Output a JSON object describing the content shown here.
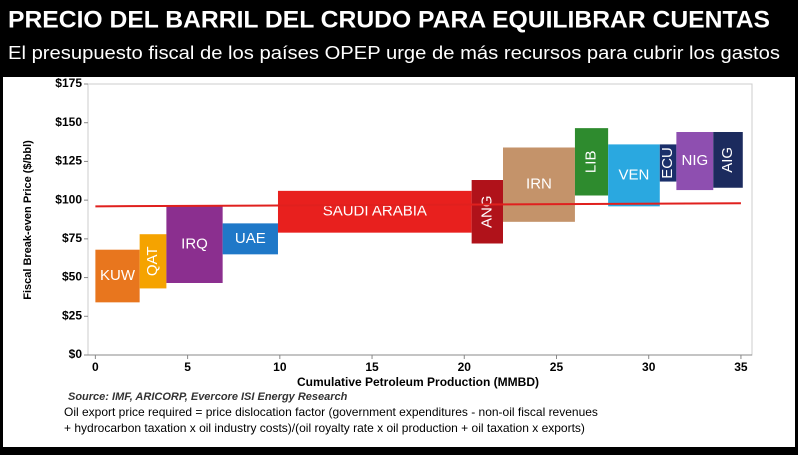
{
  "chart_data": {
    "type": "floating-bar",
    "title": "PRECIO DEL BARRIL DEL CRUDO PARA EQUILIBRAR CUENTAS",
    "subtitle": "El presupuesto fiscal de los países OPEP  urge de más recursos para cubrir los gastos",
    "y_label": "Fiscal Break-even Price ($/bbl)",
    "x_label": "Cumulative Petroleum Production (MMBD)",
    "source": "Source: IMF, ARICORP, Evercore ISI Energy Research",
    "note": [
      "Oil export price required = price dislocation factor (government expenditures - non-oil fiscal revenues",
      "+ hydrocarbon taxation x oil industry costs)/(oil royalty rate x oil production + oil taxation x exports)"
    ],
    "xlim": [
      -0.4,
      35.6
    ],
    "xticks": [
      0,
      5,
      10,
      15,
      20,
      25,
      30,
      35
    ],
    "ylim": [
      0,
      175
    ],
    "yticks": [
      {
        "value": 0,
        "label": "$0"
      },
      {
        "value": 25,
        "label": "$25"
      },
      {
        "value": 50,
        "label": "$50"
      },
      {
        "value": 75,
        "label": "$75"
      },
      {
        "value": 100,
        "label": "$100"
      },
      {
        "value": 125,
        "label": "$125"
      },
      {
        "value": 150,
        "label": "$150"
      },
      {
        "value": 175,
        "label": "$175"
      }
    ],
    "series": [
      {
        "name": "KUW",
        "color": "#e8761e",
        "x": [
          0,
          2.4
        ],
        "values": [
          34,
          68
        ]
      },
      {
        "name": "QAT",
        "color": "#f5a300",
        "x": [
          2.4,
          3.85
        ],
        "values": [
          43,
          78
        ]
      },
      {
        "name": "IRQ",
        "color": "#8b2f8f",
        "x": [
          3.85,
          6.9
        ],
        "values": [
          46.5,
          96
        ]
      },
      {
        "name": "UAE",
        "color": "#1f78c8",
        "x": [
          6.9,
          9.9
        ],
        "values": [
          65,
          85
        ]
      },
      {
        "name": "SAUDI ARABIA",
        "color": "#e8201e",
        "x": [
          9.9,
          20.4
        ],
        "values": [
          79,
          106
        ]
      },
      {
        "name": "ANG",
        "color": "#b0121a",
        "x": [
          20.4,
          22.1
        ],
        "values": [
          72,
          113
        ]
      },
      {
        "name": "IRN",
        "color": "#c4936a",
        "x": [
          22.1,
          26
        ],
        "values": [
          86,
          134
        ]
      },
      {
        "name": "LIB",
        "color": "#2e8b2e",
        "x": [
          26,
          27.8
        ],
        "values": [
          103,
          146.5
        ]
      },
      {
        "name": "VEN",
        "color": "#2aa8e0",
        "x": [
          27.8,
          30.6
        ],
        "values": [
          96,
          136
        ]
      },
      {
        "name": "ECU",
        "color": "#1a2f6a",
        "x": [
          30.6,
          31.5
        ],
        "values": [
          112,
          136
        ]
      },
      {
        "name": "NIG",
        "color": "#8e4fb0",
        "x": [
          31.5,
          33.5
        ],
        "values": [
          106.5,
          144
        ]
      },
      {
        "name": "AIG",
        "color": "#1c2b5e",
        "x": [
          33.5,
          35.1
        ],
        "values": [
          108,
          144
        ]
      }
    ],
    "reference_line": {
      "x": [
        0,
        35
      ],
      "values": [
        96,
        98
      ],
      "color": "#e0201e"
    }
  }
}
